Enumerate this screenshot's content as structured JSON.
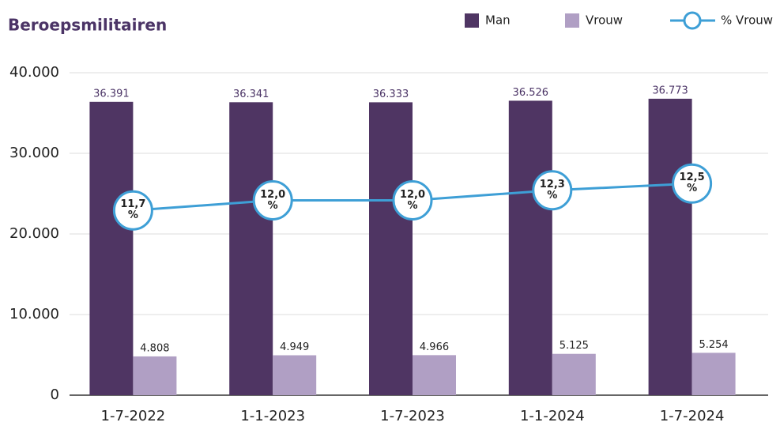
{
  "chart_data": {
    "type": "bar",
    "title": "Beroepsmilitairen",
    "categories": [
      "1-7-2022",
      "1-1-2023",
      "1-7-2023",
      "1-1-2024",
      "1-7-2024"
    ],
    "series": [
      {
        "name": "Man",
        "color": "#4f3563",
        "values": [
          36391,
          36341,
          36333,
          36526,
          36773
        ],
        "value_labels": [
          "36.391",
          "36.341",
          "36.333",
          "36.526",
          "36.773"
        ]
      },
      {
        "name": "Vrouw",
        "color": "#b09fc4",
        "values": [
          4808,
          4949,
          4966,
          5125,
          5254
        ],
        "value_labels": [
          "4.808",
          "4.949",
          "4.966",
          "5.125",
          "5.254"
        ]
      },
      {
        "name": "% Vrouw",
        "color": "#3e9fd6",
        "type": "line",
        "axis": "y2",
        "values": [
          11.7,
          12.0,
          12.0,
          12.3,
          12.5
        ],
        "value_labels": [
          "11,7 %",
          "12,0 %",
          "12,0 %",
          "12,3 %",
          "12,5 %"
        ]
      }
    ],
    "ylim": [
      0,
      40000
    ],
    "yticks": [
      0,
      {
        "value": 10000,
        "label": "10.000"
      },
      {
        "value": 20000,
        "label": "20.000"
      },
      {
        "value": 30000,
        "label": "30.000"
      },
      {
        "value": 40000,
        "label": "40.000"
      }
    ],
    "y2lim": [
      6.2,
      15.8
    ],
    "grid": true,
    "legend": "top-right"
  }
}
